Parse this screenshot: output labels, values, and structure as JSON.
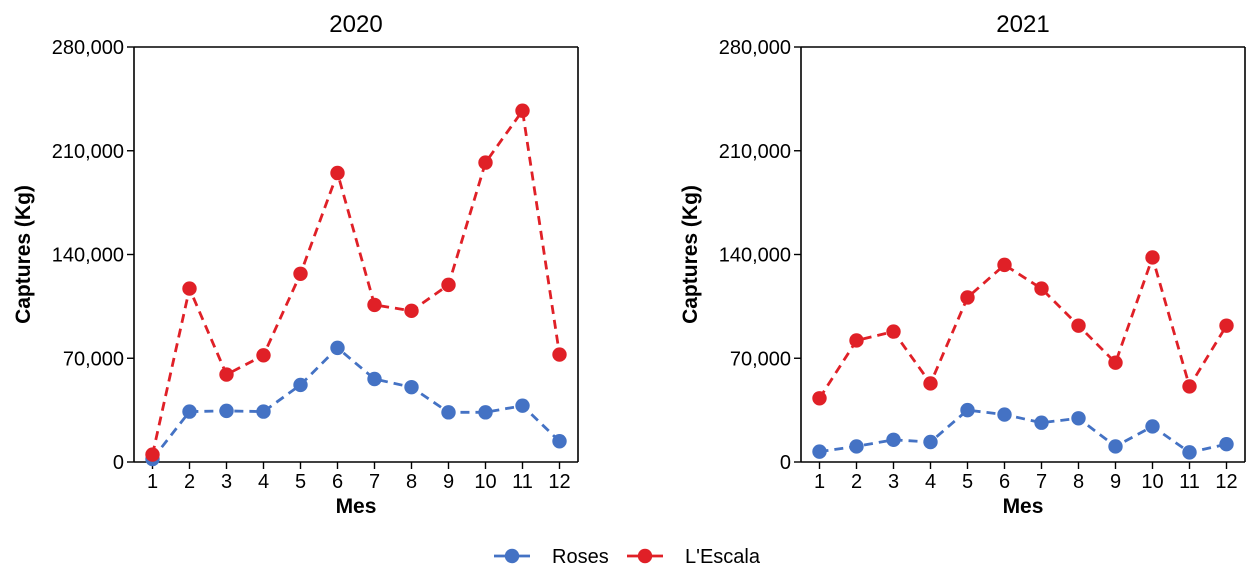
{
  "chart_data": [
    {
      "type": "line",
      "title": "2020",
      "xlabel": "Mes",
      "ylabel": "Captures (Kg)",
      "ylim": [
        0,
        280000
      ],
      "yticks": [
        0,
        70000,
        140000,
        210000,
        280000
      ],
      "ytick_labels": [
        "0",
        "70,000",
        "140,000",
        "210,000",
        "280,000"
      ],
      "x": [
        1,
        2,
        3,
        4,
        5,
        6,
        7,
        8,
        9,
        10,
        11,
        12
      ],
      "x_labels": [
        "1",
        "2",
        "3",
        "4",
        "5",
        "6",
        "7",
        "8",
        "9",
        "10",
        "11",
        "12"
      ],
      "series": [
        {
          "name": "Roses",
          "color": "#4472C4",
          "values": [
            2000,
            34000,
            34500,
            34000,
            52000,
            77000,
            56000,
            50500,
            33500,
            33500,
            38000,
            14000
          ]
        },
        {
          "name": "L'Escala",
          "color": "#E02027",
          "values": [
            5000,
            117000,
            59000,
            72000,
            127000,
            195000,
            106000,
            102000,
            119500,
            202000,
            237000,
            72500
          ]
        }
      ]
    },
    {
      "type": "line",
      "title": "2021",
      "xlabel": "Mes",
      "ylabel": "Captures (Kg)",
      "ylim": [
        0,
        280000
      ],
      "yticks": [
        0,
        70000,
        140000,
        210000,
        280000
      ],
      "ytick_labels": [
        "0",
        "70,000",
        "140,000",
        "210,000",
        "280,000"
      ],
      "x": [
        1,
        2,
        3,
        4,
        5,
        6,
        7,
        8,
        9,
        10,
        11,
        12
      ],
      "x_labels": [
        "1",
        "2",
        "3",
        "4",
        "5",
        "6",
        "7",
        "8",
        "9",
        "10",
        "11",
        "12"
      ],
      "series": [
        {
          "name": "Roses",
          "color": "#4472C4",
          "values": [
            7000,
            10500,
            15000,
            13500,
            35000,
            32000,
            26500,
            29500,
            10500,
            24000,
            6500,
            12000
          ]
        },
        {
          "name": "L'Escala",
          "color": "#E02027",
          "values": [
            43000,
            82000,
            88000,
            53000,
            111000,
            133000,
            117000,
            92000,
            67000,
            138000,
            51000,
            92000
          ]
        }
      ]
    }
  ],
  "legend": {
    "position": "bottom",
    "items": [
      {
        "label": "Roses",
        "color": "#4472C4"
      },
      {
        "label": "L'Escala",
        "color": "#E02027"
      }
    ]
  }
}
